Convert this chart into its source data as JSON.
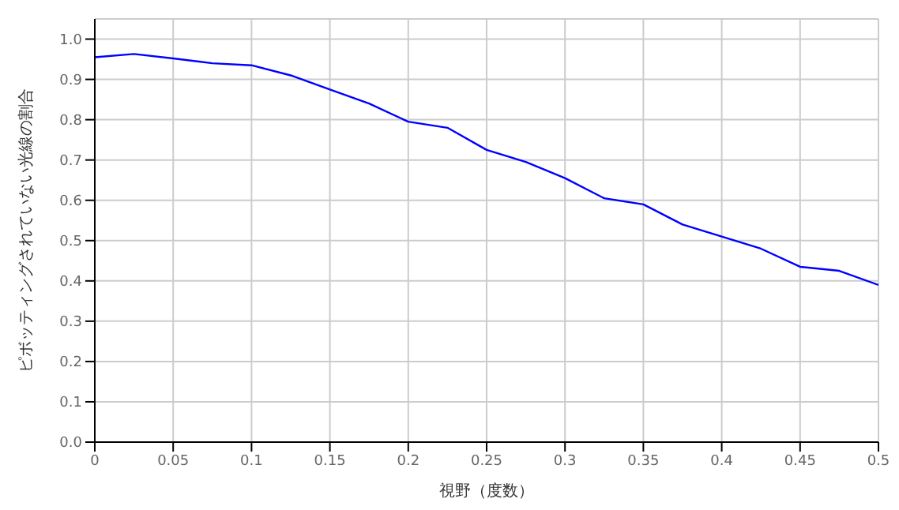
{
  "chart_data": {
    "type": "line",
    "xlabel": "視野（度数）",
    "ylabel": "ピボッティングされていない光線の割合",
    "x": [
      0,
      0.025,
      0.05,
      0.075,
      0.1,
      0.125,
      0.15,
      0.175,
      0.2,
      0.225,
      0.25,
      0.275,
      0.3,
      0.325,
      0.35,
      0.375,
      0.4,
      0.425,
      0.45,
      0.475,
      0.5
    ],
    "series": [
      {
        "color": "#0000ff",
        "values": [
          0.955,
          0.963,
          0.952,
          0.94,
          0.935,
          0.91,
          0.875,
          0.84,
          0.795,
          0.78,
          0.725,
          0.695,
          0.655,
          0.605,
          0.59,
          0.54,
          0.51,
          0.48,
          0.435,
          0.425,
          0.39
        ]
      }
    ],
    "xlim": [
      0,
      0.5
    ],
    "xticks": [
      0,
      0.05,
      0.1,
      0.15,
      0.2,
      0.25,
      0.3,
      0.35,
      0.4,
      0.45,
      0.5
    ],
    "ylim": [
      0,
      1.05
    ],
    "yticks": [
      {
        "value": 0,
        "label": "0.0"
      },
      0.1,
      0.2,
      0.3,
      0.4,
      0.5,
      0.6,
      0.7,
      0.8,
      0.9,
      {
        "value": 1,
        "label": "1.0"
      }
    ],
    "grid": true,
    "legend": false,
    "marker": "none",
    "line_style": "solid"
  }
}
